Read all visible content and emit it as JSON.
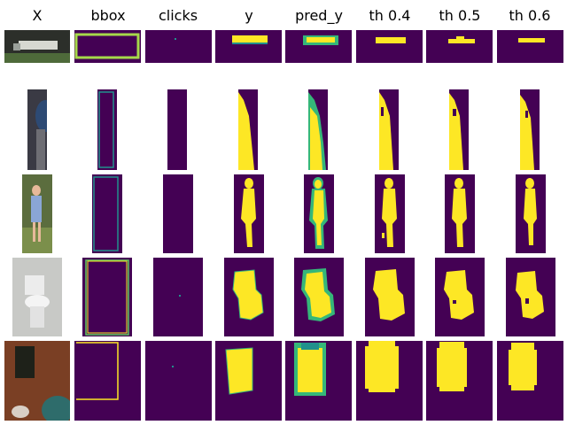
{
  "columns": [
    "X",
    "bbox",
    "clicks",
    "y",
    "pred_y",
    "th 0.4",
    "th 0.5",
    "th 0.6"
  ],
  "rows": [
    {
      "subject": "aircraft on ground"
    },
    {
      "subject": "person partial"
    },
    {
      "subject": "child on grass"
    },
    {
      "subject": "toilet"
    },
    {
      "subject": "dark bag on wooden table"
    }
  ],
  "colors": {
    "background_mask": "#440154",
    "foreground_mask": "#fde725",
    "mid_teal": "#21918c",
    "mid_green": "#5ec962",
    "bbox_stroke_yellow": "#fde725",
    "bbox_stroke_teal": "#35b779"
  }
}
